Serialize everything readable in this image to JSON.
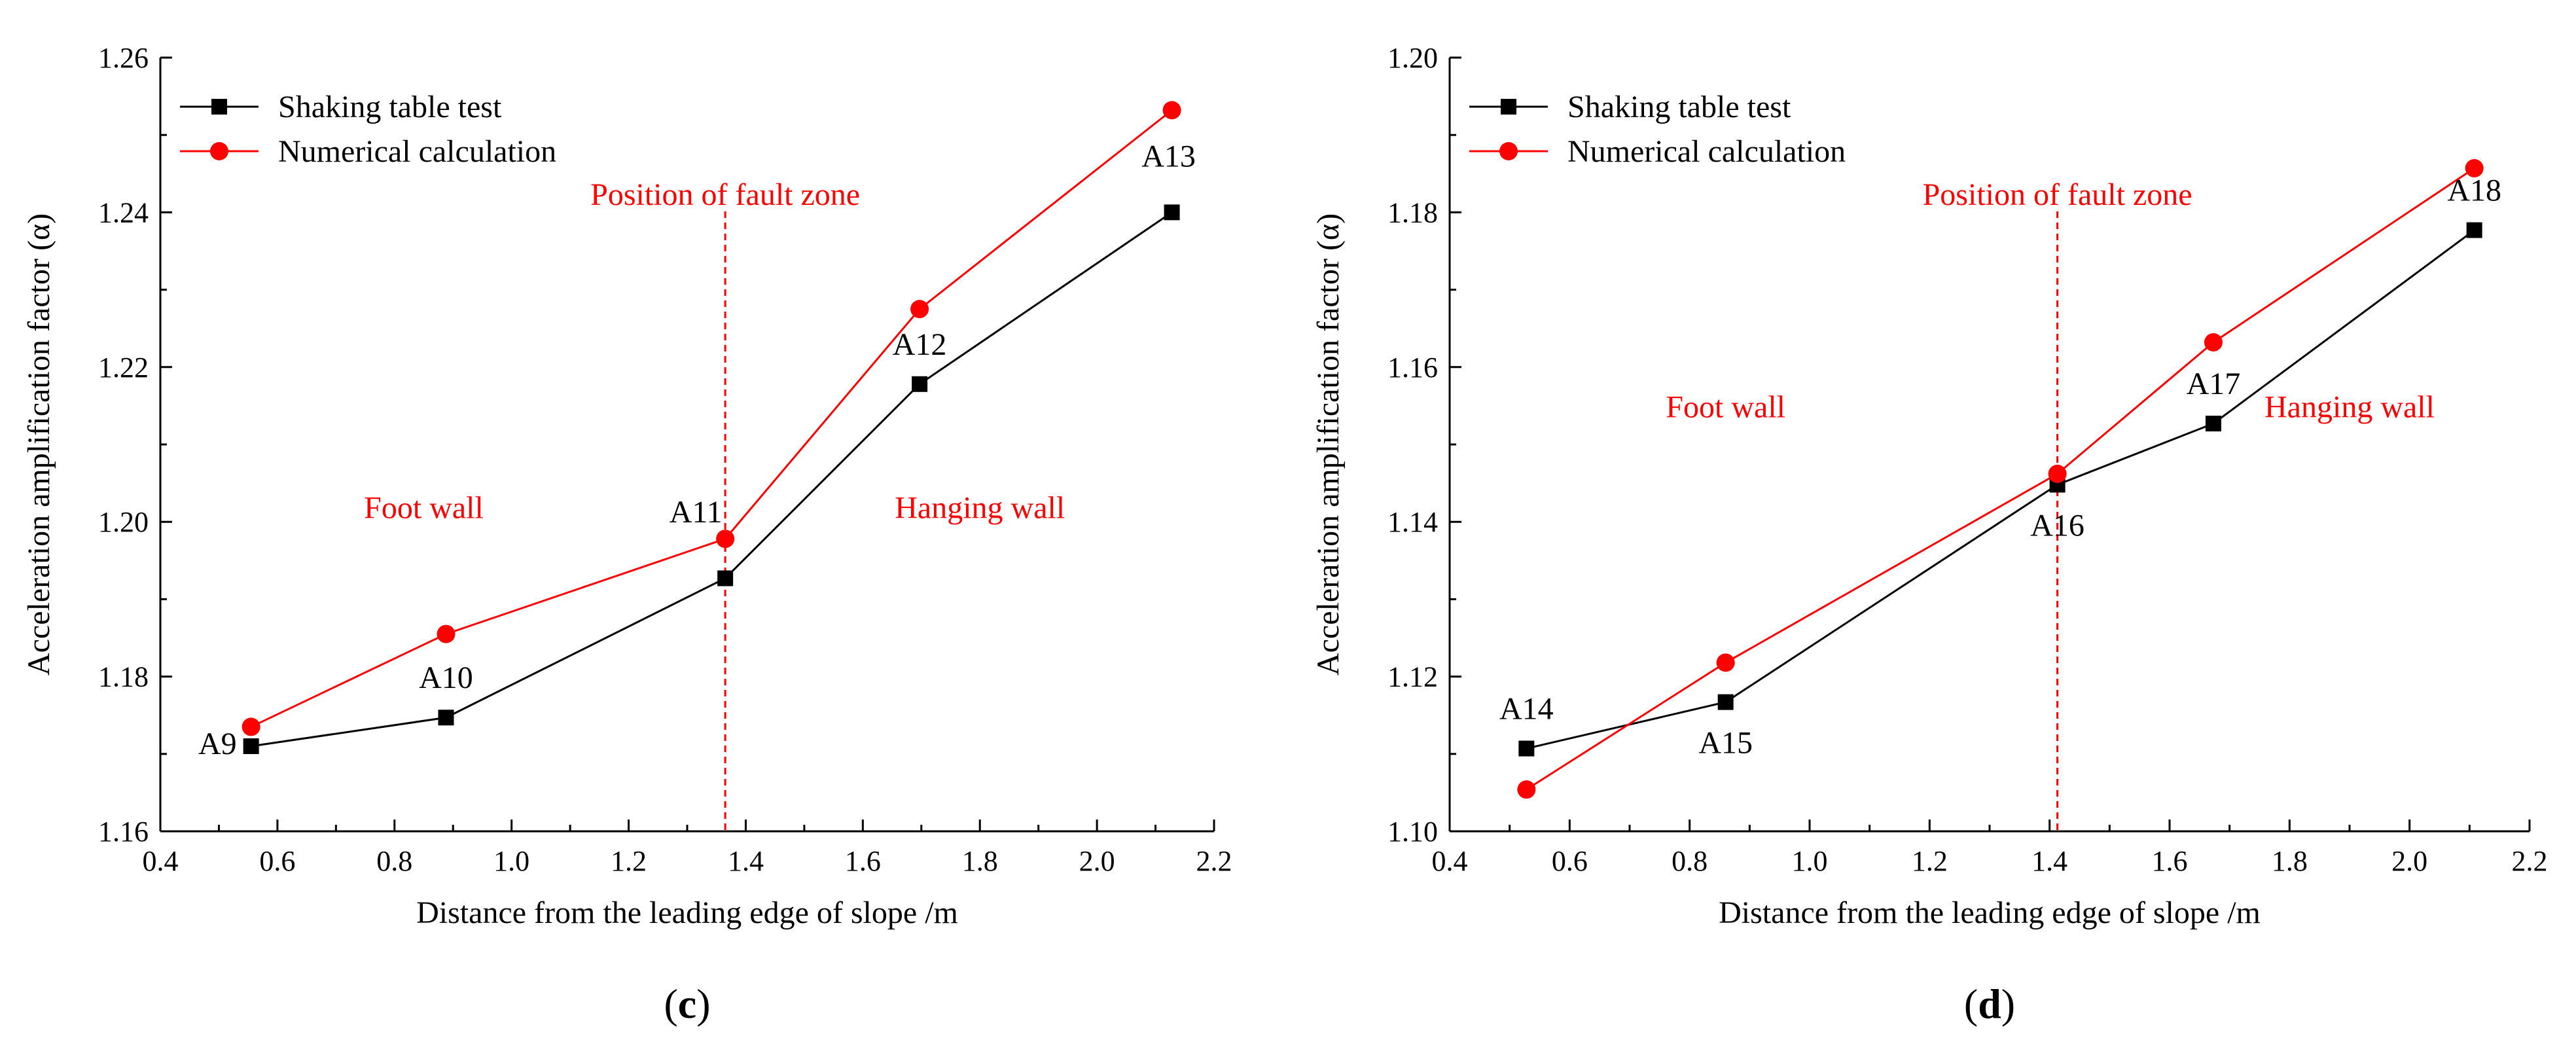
{
  "chart_data": [
    {
      "type": "line",
      "panel_label": "(c)",
      "panel_letter": "c",
      "paren_open": "(",
      "paren_close": ")",
      "xlabel": "Distance from the leading edge of slope /m",
      "ylabel": "Acceleration amplification factor (α)",
      "xlim": [
        0.4,
        2.2
      ],
      "ylim": [
        1.16,
        1.26
      ],
      "xticks": [
        0.4,
        0.6,
        0.8,
        1.0,
        1.2,
        1.4,
        1.6,
        1.8,
        2.0,
        2.2
      ],
      "xtick_labels": [
        "0.4",
        "0.6",
        "0.8",
        "1.0",
        "1.2",
        "1.4",
        "1.6",
        "1.8",
        "2.0",
        "2.2"
      ],
      "yticks": [
        1.16,
        1.18,
        1.2,
        1.22,
        1.24,
        1.26
      ],
      "ytick_labels": [
        "1.16",
        "1.18",
        "1.20",
        "1.22",
        "1.24",
        "1.26"
      ],
      "legend_position": "top-left",
      "series": [
        {
          "name": "Shaking table test",
          "color": "#000000",
          "marker": "square",
          "x": [
            0.555,
            0.888,
            1.365,
            1.697,
            2.128
          ],
          "y": [
            1.171,
            1.1747,
            1.1927,
            1.2178,
            1.24
          ]
        },
        {
          "name": "Numerical calculation",
          "color": "#ff0000",
          "marker": "circle",
          "x": [
            0.555,
            0.888,
            1.365,
            1.697,
            2.128
          ],
          "y": [
            1.1735,
            1.1855,
            1.1978,
            1.2275,
            1.2532
          ]
        }
      ],
      "fault_line": {
        "x": 1.365,
        "label": "Position of fault zone",
        "color": "#ff0000"
      },
      "region_labels": [
        {
          "text": "Foot wall",
          "x": 0.85,
          "y": 1.2005
        },
        {
          "text": "Hanging wall",
          "x": 1.8,
          "y": 1.2005
        }
      ],
      "point_labels": [
        {
          "text": "A9",
          "x": 0.555,
          "y": 1.171,
          "pos": "left"
        },
        {
          "text": "A10",
          "x": 0.888,
          "y": 1.1747,
          "pos": "above"
        },
        {
          "text": "A11",
          "x": 1.365,
          "y": 1.1978,
          "pos": "above-left"
        },
        {
          "text": "A12",
          "x": 1.697,
          "y": 1.2178,
          "pos": "above"
        },
        {
          "text": "A13",
          "x": 2.128,
          "y": 1.24,
          "pos": "above-high"
        }
      ]
    },
    {
      "type": "line",
      "panel_label": "(d)",
      "panel_letter": "d",
      "paren_open": "(",
      "paren_close": ")",
      "xlabel": "Distance from the leading edge of slope /m",
      "ylabel": "Acceleration amplification factor (α)",
      "xlim": [
        0.4,
        2.2
      ],
      "ylim": [
        1.1,
        1.2
      ],
      "xticks": [
        0.4,
        0.6,
        0.8,
        1.0,
        1.2,
        1.4,
        1.6,
        1.8,
        2.0,
        2.2
      ],
      "xtick_labels": [
        "0.4",
        "0.6",
        "0.8",
        "1.0",
        "1.2",
        "1.4",
        "1.6",
        "1.8",
        "2.0",
        "2.2"
      ],
      "yticks": [
        1.1,
        1.12,
        1.14,
        1.16,
        1.18,
        1.2
      ],
      "ytick_labels": [
        "1.10",
        "1.12",
        "1.14",
        "1.16",
        "1.18",
        "1.20"
      ],
      "legend_position": "top-left",
      "series": [
        {
          "name": "Shaking table test",
          "color": "#000000",
          "marker": "square",
          "x": [
            0.528,
            0.86,
            1.413,
            1.673,
            2.108
          ],
          "y": [
            1.1107,
            1.1167,
            1.1448,
            1.1527,
            1.1777
          ]
        },
        {
          "name": "Numerical calculation",
          "color": "#ff0000",
          "marker": "circle",
          "x": [
            0.528,
            0.86,
            1.413,
            1.673,
            2.108
          ],
          "y": [
            1.1054,
            1.1218,
            1.1462,
            1.1632,
            1.1857
          ]
        }
      ],
      "fault_line": {
        "x": 1.413,
        "label": "Position of fault zone",
        "color": "#ff0000"
      },
      "region_labels": [
        {
          "text": "Foot wall",
          "x": 0.86,
          "y": 1.1535
        },
        {
          "text": "Hanging wall",
          "x": 1.9,
          "y": 1.1535
        }
      ],
      "point_labels": [
        {
          "text": "A14",
          "x": 0.528,
          "y": 1.1107,
          "pos": "above"
        },
        {
          "text": "A15",
          "x": 0.86,
          "y": 1.1167,
          "pos": "below"
        },
        {
          "text": "A16",
          "x": 1.413,
          "y": 1.1448,
          "pos": "below"
        },
        {
          "text": "A17",
          "x": 1.673,
          "y": 1.1527,
          "pos": "above"
        },
        {
          "text": "A18",
          "x": 2.108,
          "y": 1.1777,
          "pos": "above"
        }
      ]
    }
  ]
}
